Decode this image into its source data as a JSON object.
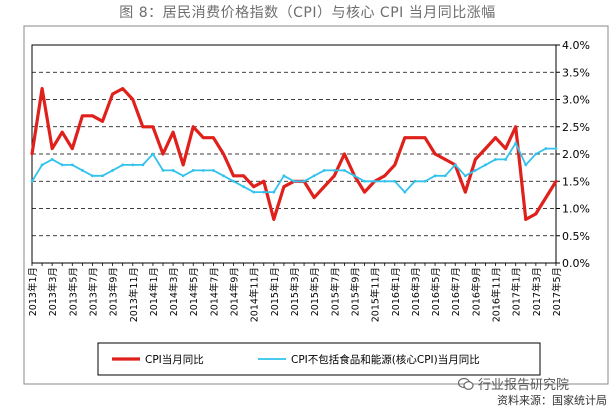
{
  "figure_title": "图 8：居民消费价格指数（CPI）与核心 CPI 当月同比涨幅",
  "watermark_text": "行业报告研究院",
  "source_text": "资料来源：国家统计局",
  "colors": {
    "cpi": "#e0201b",
    "core": "#33c2ec"
  },
  "chart_data": {
    "type": "line",
    "title": "图 8：居民消费价格指数（CPI）与核心 CPI 当月同比涨幅",
    "xlabel": "",
    "ylabel": "",
    "ylim": [
      0,
      4.0
    ],
    "y_ticks": [
      "0.0%",
      "0.5%",
      "1.0%",
      "1.5%",
      "2.0%",
      "2.5%",
      "3.0%",
      "3.5%",
      "4.0%"
    ],
    "x_tick_labels": [
      "2013年1月",
      "2013年3月",
      "2013年5月",
      "2013年7月",
      "2013年9月",
      "2013年11月",
      "2014年1月",
      "2014年3月",
      "2014年5月",
      "2014年7月",
      "2014年9月",
      "2014年11月",
      "2015年1月",
      "2015年3月",
      "2015年5月",
      "2015年7月",
      "2015年9月",
      "2015年11月",
      "2016年1月",
      "2016年3月",
      "2016年5月",
      "2016年7月",
      "2016年9月",
      "2016年11月",
      "2017年1月",
      "2017年3月",
      "2017年5月"
    ],
    "grid": true,
    "legend_position": "bottom",
    "series": [
      {
        "name": "CPI当月同比",
        "color": "#e0201b",
        "values": [
          2.0,
          3.2,
          2.1,
          2.4,
          2.1,
          2.7,
          2.7,
          2.6,
          3.1,
          3.2,
          3.0,
          2.5,
          2.5,
          2.0,
          2.4,
          1.8,
          2.5,
          2.3,
          2.3,
          2.0,
          1.6,
          1.6,
          1.4,
          1.5,
          0.8,
          1.4,
          1.5,
          1.5,
          1.2,
          1.4,
          1.6,
          2.0,
          1.6,
          1.3,
          1.5,
          1.6,
          1.8,
          2.3,
          2.3,
          2.3,
          2.0,
          1.9,
          1.8,
          1.3,
          1.9,
          2.1,
          2.3,
          2.1,
          2.5,
          0.8,
          0.9,
          1.2,
          1.5
        ]
      },
      {
        "name": "CPI不包括食品和能源(核心CPI)当月同比",
        "color": "#33c2ec",
        "values": [
          1.5,
          1.8,
          1.9,
          1.8,
          1.8,
          1.7,
          1.6,
          1.6,
          1.7,
          1.8,
          1.8,
          1.8,
          2.0,
          1.7,
          1.7,
          1.6,
          1.7,
          1.7,
          1.7,
          1.6,
          1.5,
          1.4,
          1.3,
          1.3,
          1.3,
          1.6,
          1.5,
          1.5,
          1.6,
          1.7,
          1.7,
          1.7,
          1.6,
          1.5,
          1.5,
          1.5,
          1.5,
          1.3,
          1.5,
          1.5,
          1.6,
          1.6,
          1.8,
          1.6,
          1.7,
          1.8,
          1.9,
          1.9,
          2.2,
          1.8,
          2.0,
          2.1,
          2.1
        ]
      }
    ]
  }
}
